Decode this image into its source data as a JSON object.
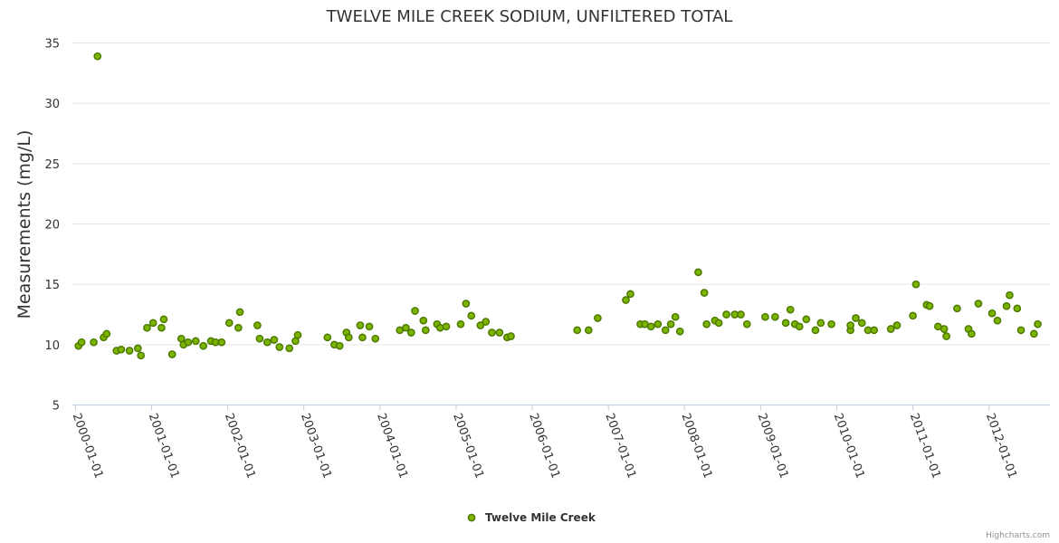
{
  "chart_data": {
    "type": "scatter",
    "title": "TWELVE MILE CREEK SODIUM, UNFILTERED TOTAL",
    "xlabel": "",
    "ylabel": "Measurements (mg/L)",
    "ylim": [
      5,
      35
    ],
    "yticks": [
      "5",
      "10",
      "15",
      "20",
      "25",
      "30",
      "35"
    ],
    "xticks": [
      "2000-01-01",
      "2001-01-01",
      "2002-01-01",
      "2003-01-01",
      "2004-01-01",
      "2005-01-01",
      "2006-01-01",
      "2007-01-01",
      "2008-01-01",
      "2009-01-01",
      "2010-01-01",
      "2011-01-01",
      "2012-01-01"
    ],
    "xrange": [
      1999.96,
      2012.8
    ],
    "grid": true,
    "legend": "bottom-center",
    "series": [
      {
        "name": "Twelve Mile Creek",
        "color": "#7cb500",
        "stroke": "#4c7a00",
        "points": [
          [
            2000.04,
            9.9
          ],
          [
            2000.08,
            10.2
          ],
          [
            2000.24,
            10.2
          ],
          [
            2000.29,
            33.9
          ],
          [
            2000.37,
            10.6
          ],
          [
            2000.41,
            10.9
          ],
          [
            2000.54,
            9.5
          ],
          [
            2000.6,
            9.6
          ],
          [
            2000.71,
            9.5
          ],
          [
            2000.82,
            9.7
          ],
          [
            2000.86,
            9.1
          ],
          [
            2000.94,
            11.4
          ],
          [
            2001.02,
            11.8
          ],
          [
            2001.13,
            11.4
          ],
          [
            2001.16,
            12.1
          ],
          [
            2001.27,
            9.2
          ],
          [
            2001.39,
            10.5
          ],
          [
            2001.42,
            10.0
          ],
          [
            2001.48,
            10.2
          ],
          [
            2001.58,
            10.3
          ],
          [
            2001.68,
            9.9
          ],
          [
            2001.78,
            10.3
          ],
          [
            2001.84,
            10.2
          ],
          [
            2001.92,
            10.2
          ],
          [
            2002.02,
            11.8
          ],
          [
            2002.14,
            11.4
          ],
          [
            2002.16,
            12.7
          ],
          [
            2002.39,
            11.6
          ],
          [
            2002.42,
            10.5
          ],
          [
            2002.52,
            10.2
          ],
          [
            2002.61,
            10.4
          ],
          [
            2002.68,
            9.8
          ],
          [
            2002.81,
            9.7
          ],
          [
            2002.89,
            10.3
          ],
          [
            2002.92,
            10.8
          ],
          [
            2003.31,
            10.6
          ],
          [
            2003.4,
            10.0
          ],
          [
            2003.47,
            9.9
          ],
          [
            2003.56,
            11.0
          ],
          [
            2003.59,
            10.6
          ],
          [
            2003.74,
            11.6
          ],
          [
            2003.77,
            10.6
          ],
          [
            2003.86,
            11.5
          ],
          [
            2003.94,
            10.5
          ],
          [
            2004.26,
            11.2
          ],
          [
            2004.34,
            11.4
          ],
          [
            2004.41,
            11.0
          ],
          [
            2004.46,
            12.8
          ],
          [
            2004.57,
            12.0
          ],
          [
            2004.6,
            11.2
          ],
          [
            2004.75,
            11.7
          ],
          [
            2004.79,
            11.4
          ],
          [
            2004.87,
            11.5
          ],
          [
            2005.06,
            11.7
          ],
          [
            2005.13,
            13.4
          ],
          [
            2005.2,
            12.4
          ],
          [
            2005.32,
            11.6
          ],
          [
            2005.39,
            11.9
          ],
          [
            2005.47,
            11.0
          ],
          [
            2005.57,
            11.0
          ],
          [
            2005.67,
            10.6
          ],
          [
            2005.72,
            10.7
          ],
          [
            2006.59,
            11.2
          ],
          [
            2006.74,
            11.2
          ],
          [
            2006.86,
            12.2
          ],
          [
            2007.23,
            13.7
          ],
          [
            2007.29,
            14.2
          ],
          [
            2007.42,
            11.7
          ],
          [
            2007.48,
            11.7
          ],
          [
            2007.56,
            11.5
          ],
          [
            2007.65,
            11.7
          ],
          [
            2007.75,
            11.2
          ],
          [
            2007.82,
            11.7
          ],
          [
            2007.88,
            12.3
          ],
          [
            2007.94,
            11.1
          ],
          [
            2008.18,
            16.0
          ],
          [
            2008.26,
            14.3
          ],
          [
            2008.29,
            11.7
          ],
          [
            2008.4,
            12.0
          ],
          [
            2008.45,
            11.8
          ],
          [
            2008.55,
            12.5
          ],
          [
            2008.66,
            12.5
          ],
          [
            2008.74,
            12.5
          ],
          [
            2008.82,
            11.7
          ],
          [
            2009.06,
            12.3
          ],
          [
            2009.19,
            12.3
          ],
          [
            2009.33,
            11.8
          ],
          [
            2009.39,
            12.9
          ],
          [
            2009.45,
            11.7
          ],
          [
            2009.51,
            11.5
          ],
          [
            2009.6,
            12.1
          ],
          [
            2009.72,
            11.2
          ],
          [
            2009.79,
            11.8
          ],
          [
            2009.93,
            11.7
          ],
          [
            2010.18,
            11.2
          ],
          [
            2010.18,
            11.6
          ],
          [
            2010.25,
            12.2
          ],
          [
            2010.33,
            11.8
          ],
          [
            2010.41,
            11.2
          ],
          [
            2010.49,
            11.2
          ],
          [
            2010.71,
            11.3
          ],
          [
            2010.79,
            11.6
          ],
          [
            2011.0,
            12.4
          ],
          [
            2011.04,
            15.0
          ],
          [
            2011.18,
            13.3
          ],
          [
            2011.22,
            13.2
          ],
          [
            2011.33,
            11.5
          ],
          [
            2011.41,
            11.3
          ],
          [
            2011.44,
            10.7
          ],
          [
            2011.58,
            13.0
          ],
          [
            2011.73,
            11.3
          ],
          [
            2011.77,
            10.9
          ],
          [
            2011.86,
            13.4
          ],
          [
            2012.04,
            12.6
          ],
          [
            2012.11,
            12.0
          ],
          [
            2012.23,
            13.2
          ],
          [
            2012.27,
            14.1
          ],
          [
            2012.37,
            13.0
          ],
          [
            2012.42,
            11.2
          ],
          [
            2012.59,
            10.9
          ],
          [
            2012.64,
            11.7
          ]
        ]
      }
    ]
  },
  "credits": "Highcharts.com"
}
